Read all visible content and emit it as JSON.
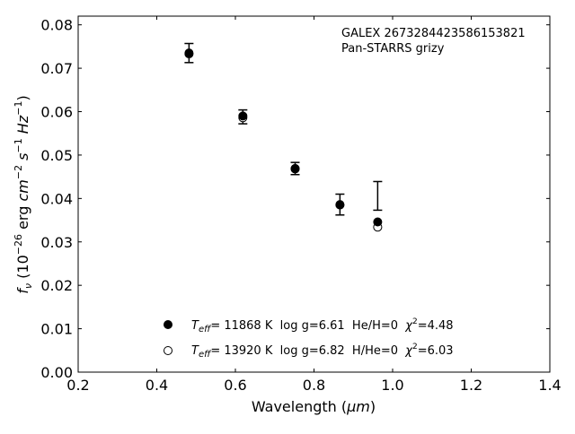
{
  "chart_data": {
    "type": "scatter",
    "annotation": [
      "GALEX 2673284423586153821",
      "Pan-STARRS grizy"
    ],
    "xlabel": "Wavelength (μm)",
    "ylabel": "f_ν (10^-26 erg cm^-2 s^-1 Hz^-1)",
    "xlim": [
      0.2,
      1.4
    ],
    "ylim": [
      0.0,
      0.082
    ],
    "xticks": [
      "0.2",
      "0.4",
      "0.6",
      "0.8",
      "1.0",
      "1.2",
      "1.4"
    ],
    "yticks": [
      "0.00",
      "0.01",
      "0.02",
      "0.03",
      "0.04",
      "0.05",
      "0.06",
      "0.07",
      "0.08"
    ],
    "grid": false,
    "legend_position": "bottom-center",
    "observed": {
      "x": [
        0.482,
        0.619,
        0.752,
        0.866,
        0.962
      ],
      "y": [
        0.0735,
        0.0588,
        0.0469,
        0.0386,
        0.0406
      ],
      "yerr": [
        0.0022,
        0.0016,
        0.0014,
        0.0024,
        0.0033
      ]
    },
    "series": [
      {
        "legend_label": "T_eff= 11868 K  log g=6.61  He/H=0  χ²=4.48",
        "marker": "filled-circle",
        "x": [
          0.482,
          0.619,
          0.752,
          0.866,
          0.962
        ],
        "y": [
          0.0735,
          0.059,
          0.0469,
          0.0386,
          0.0346
        ]
      },
      {
        "legend_label": "T_eff= 13920 K  log g=6.82  H/He=0  χ²=6.03",
        "marker": "open-circle",
        "x": [
          0.482,
          0.619,
          0.752,
          0.866,
          0.962
        ],
        "y": [
          0.0733,
          0.0586,
          0.0468,
          0.0385,
          0.0334
        ]
      }
    ]
  },
  "legend": {
    "entry1": {
      "teff_label": "T",
      "teff_sub": "eff",
      "teff_rest": "= 11868 K  log g=6.61  He/H=0  ",
      "chi_label": "χ",
      "chi_sup": "2",
      "chi_rest": "=4.48"
    },
    "entry2": {
      "teff_label": "T",
      "teff_sub": "eff",
      "teff_rest": "= 13920 K  log g=6.82  H/He=0  ",
      "chi_label": "χ",
      "chi_sup": "2",
      "chi_rest": "=6.03"
    }
  },
  "ylabel_parts": {
    "f": "f",
    "nu": "ν",
    "open": " (10",
    "exp1": "−26",
    "erg": " erg ",
    "cm": "cm",
    "exp2": "−2",
    "s": " s",
    "exp3": "−1",
    "hz": " Hz",
    "exp4": "−1",
    "close": ")"
  },
  "xlabel_parts": {
    "text": "Wavelength (",
    "mu": "μ",
    "unit": "m",
    "close": ")"
  }
}
